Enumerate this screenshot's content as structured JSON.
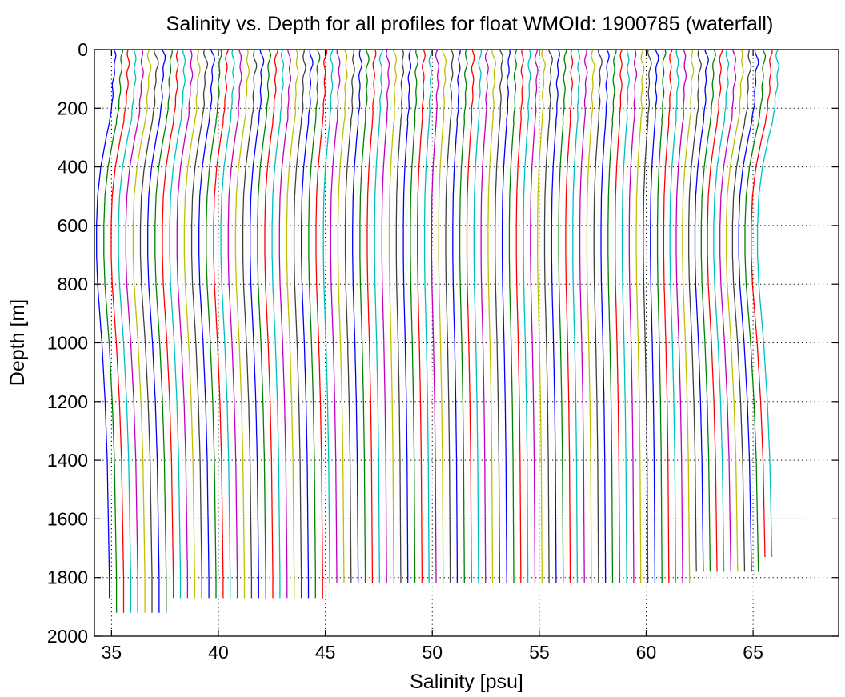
{
  "chart_data": {
    "type": "line",
    "title": "Salinity vs. Depth for all profiles for float WMOId: 1900785 (waterfall)",
    "xlabel": "Salinity [psu]",
    "ylabel": "Depth [m]",
    "xlim": [
      34.2,
      69
    ],
    "ylim": [
      0,
      2000
    ],
    "y_reversed": true,
    "grid": "dotted",
    "xticks": [
      35,
      40,
      45,
      50,
      55,
      60,
      65
    ],
    "yticks": [
      0,
      200,
      400,
      600,
      800,
      1000,
      1200,
      1400,
      1600,
      1800,
      2000
    ],
    "color_cycle": [
      "#0000ff",
      "#008000",
      "#ff0000",
      "#00bfbf",
      "#bf00bf",
      "#bfbf00",
      "#404040"
    ],
    "profile_count": 95,
    "waterfall_offset_psu": 0.33,
    "base_profile": {
      "depth": [
        0,
        50,
        100,
        150,
        200,
        250,
        300,
        400,
        500,
        600,
        700,
        800,
        1000,
        1200,
        1400,
        1600,
        1800
      ],
      "salinity": [
        35.1,
        35.15,
        35.1,
        35.05,
        35.0,
        34.9,
        34.75,
        34.5,
        34.35,
        34.3,
        34.3,
        34.35,
        34.55,
        34.7,
        34.8,
        34.85,
        34.9
      ]
    },
    "profile_bottom_depths_m": [
      1875,
      1925,
      1925,
      1925,
      1925,
      1925,
      1925,
      1925,
      1925,
      1875,
      1875,
      1875,
      1875,
      1875,
      1875,
      1875,
      1875,
      1875,
      1875,
      1875,
      1875,
      1875,
      1875,
      1875,
      1875,
      1875,
      1875,
      1875,
      1875,
      1875,
      1875,
      1825,
      1825,
      1825,
      1825,
      1825,
      1825,
      1825,
      1825,
      1825,
      1825,
      1825,
      1825,
      1825,
      1825,
      1825,
      1825,
      1825,
      1825,
      1825,
      1825,
      1825,
      1825,
      1825,
      1825,
      1825,
      1825,
      1825,
      1825,
      1825,
      1825,
      1825,
      1825,
      1825,
      1825,
      1825,
      1825,
      1825,
      1825,
      1825,
      1825,
      1825,
      1825,
      1825,
      1825,
      1825,
      1825,
      1825,
      1825,
      1825,
      1825,
      1825,
      1825,
      1780,
      1780,
      1780,
      1780,
      1780,
      1780,
      1780,
      1780,
      1780,
      1780,
      1730,
      1730
    ]
  }
}
